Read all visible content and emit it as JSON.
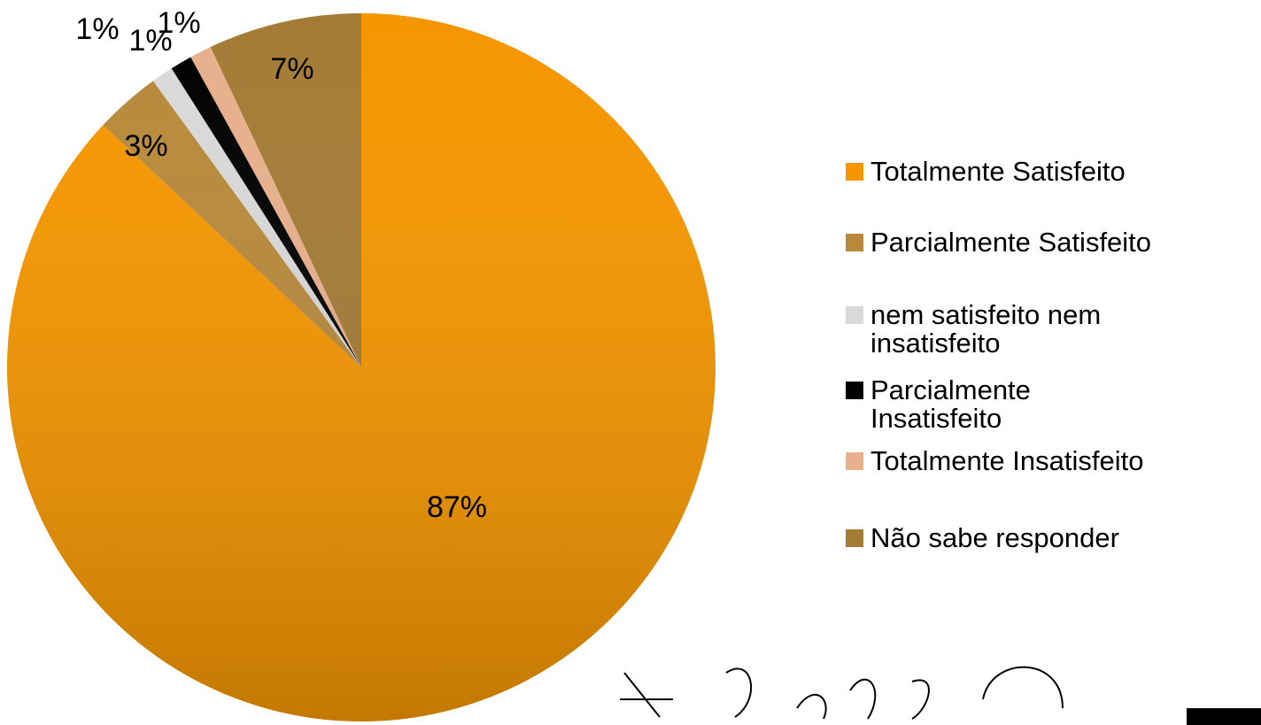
{
  "chart_data": {
    "type": "pie",
    "categories": [
      "Totalmente Satisfeito",
      "Parcialmente Satisfeito",
      "nem satisfeito nem insatisfeito",
      "Parcialmente Insatisfeito",
      "Totalmente Insatisfeito",
      "Não sabe responder"
    ],
    "values": [
      87,
      3,
      1,
      1,
      1,
      7
    ],
    "value_labels": [
      "87%",
      "3%",
      "1%",
      "1%",
      "1%",
      "7%"
    ],
    "colors": [
      "#f59600",
      "#b8893a",
      "#d9d9d9",
      "#000000",
      "#e8b08c",
      "#a47b35"
    ]
  }
}
